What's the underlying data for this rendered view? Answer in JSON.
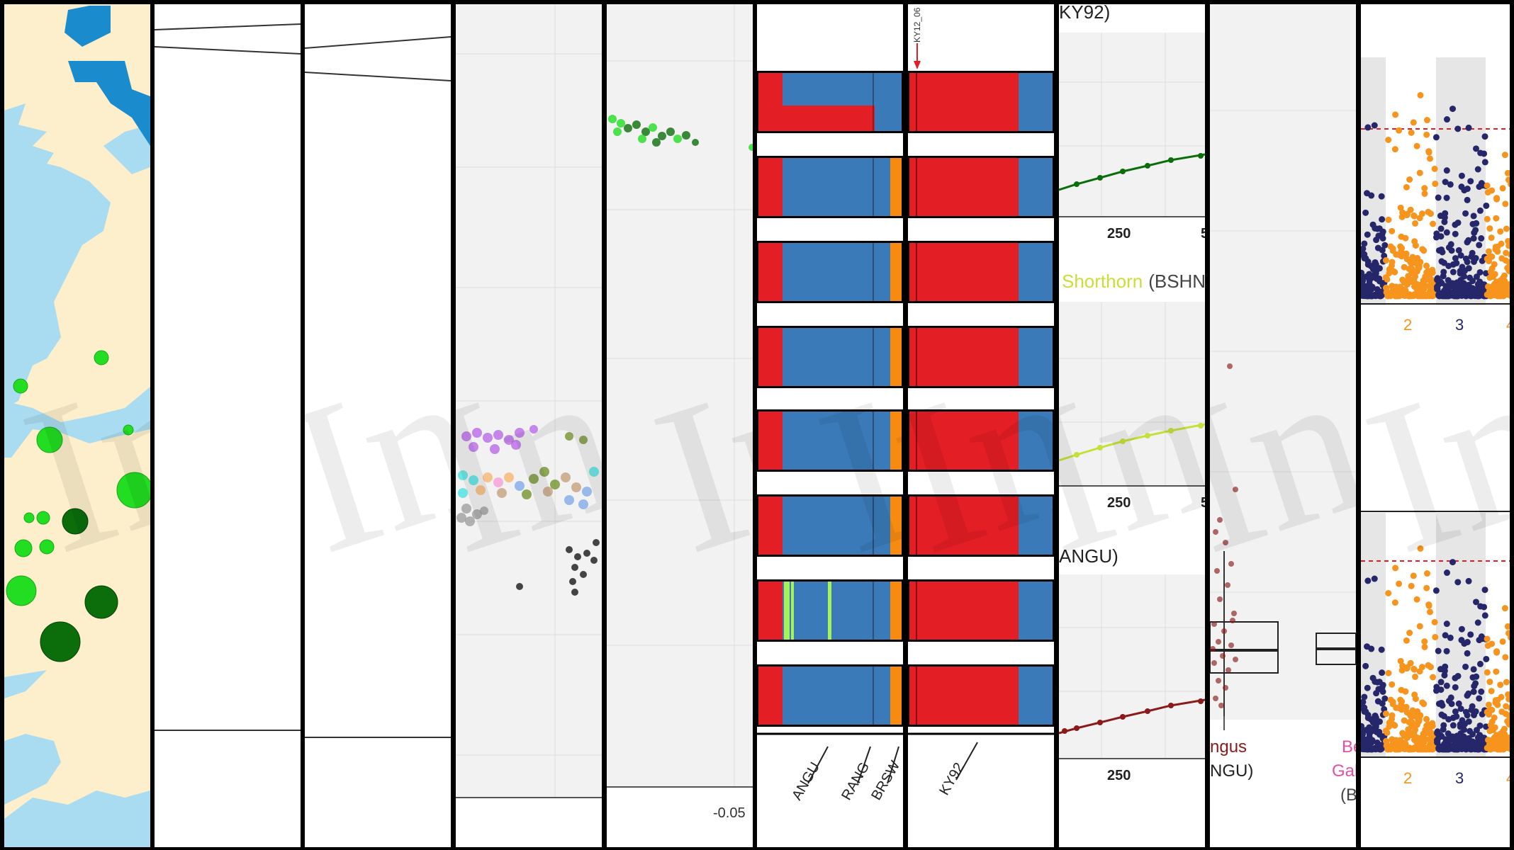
{
  "watermark": "In",
  "colors": {
    "land": "#fdefcc",
    "water": "#a9dcf0",
    "deep_water": "#1a8ccd",
    "bright_green": "#22dd22",
    "dark_green": "#0b6e0b",
    "red": "#e31e24",
    "blue": "#3a7ab8",
    "orange": "#f78b12",
    "lime": "#a6f25a",
    "navy": "#26266a",
    "gold": "#f7941d",
    "maroon": "#8b1a1a",
    "yellowgreen": "#c6e03a",
    "magenta": "#e34fa8",
    "purple": "#b560e8",
    "cyan": "#3fe0e0"
  },
  "structure_panel_left": {
    "labels": [
      "ANGU",
      "RANG",
      "BRSW"
    ]
  },
  "structure_panel_right": {
    "top_label": "KY12_06",
    "labels": [
      "KY92"
    ]
  },
  "pca_axis": {
    "tick_label": "-0.05"
  },
  "line_charts": {
    "top_title_fragment": "KY92)",
    "middle_title": "Shorthorn",
    "middle_title_code": "(BSHN",
    "bottom_title_fragment": "ANGU)",
    "tick": "250",
    "cut_tick": "5"
  },
  "boxplot": {
    "label_line1": "ngus",
    "label_line2": "NGU)",
    "second_label_line1": "Be",
    "second_label_line2": "Gal",
    "second_label_line3": "(B"
  },
  "manhattan": {
    "ticks": [
      "2",
      "3",
      "4"
    ]
  }
}
